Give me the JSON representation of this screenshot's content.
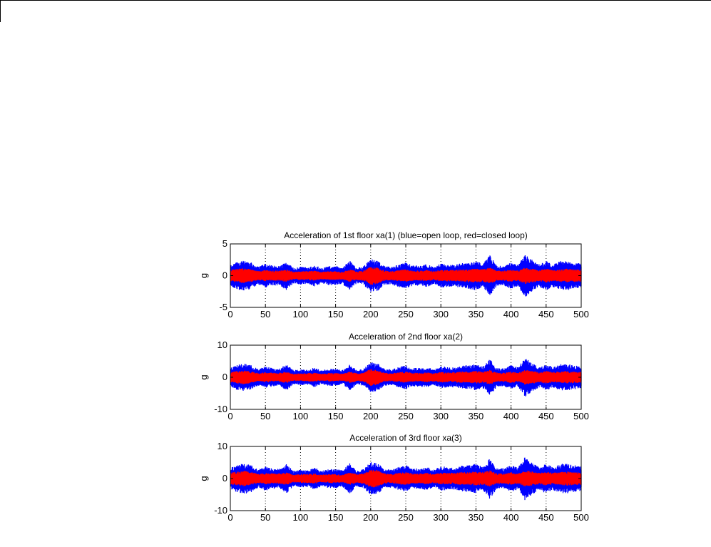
{
  "colors": {
    "open_loop": "#0000ff",
    "closed_loop": "#ff0000",
    "axis": "#000000",
    "grid": "#000000"
  },
  "chart_data": [
    {
      "type": "area",
      "title": "Acceleration of 1st floor xa(1) (blue=open loop, red=closed loop)",
      "xlabel": "",
      "ylabel": "g",
      "xlim": [
        0,
        500
      ],
      "ylim": [
        -5,
        5
      ],
      "xticks": [
        "0",
        "50",
        "100",
        "150",
        "200",
        "250",
        "300",
        "350",
        "400",
        "450",
        "500"
      ],
      "yticks": [
        "5",
        "0",
        "-5"
      ],
      "grid": "vertical dotted",
      "x": [
        0,
        10,
        20,
        30,
        40,
        50,
        60,
        70,
        80,
        90,
        100,
        110,
        120,
        130,
        140,
        150,
        160,
        170,
        180,
        190,
        200,
        210,
        220,
        230,
        240,
        250,
        260,
        270,
        280,
        290,
        300,
        310,
        320,
        330,
        340,
        350,
        360,
        370,
        380,
        390,
        400,
        410,
        420,
        430,
        440,
        450,
        460,
        470,
        480,
        490,
        500
      ],
      "series": [
        {
          "name": "blue=open loop",
          "color": "#0000ff",
          "envelope": [
            1.6,
            2.2,
            2.4,
            2.1,
            1.4,
            1.9,
            1.6,
            1.5,
            2.3,
            1.2,
            1.4,
            1.3,
            1.7,
            1.2,
            1.5,
            1.5,
            1.3,
            2.4,
            1.2,
            1.5,
            2.6,
            2.4,
            1.5,
            1.4,
            1.8,
            2.1,
            1.6,
            1.6,
            1.8,
            1.4,
            1.9,
            1.8,
            1.7,
            2.0,
            2.1,
            2.3,
            1.9,
            3.2,
            1.6,
            1.6,
            2.1,
            1.7,
            3.4,
            2.5,
            1.8,
            2.3,
            1.8,
            2.3,
            2.3,
            2.1,
            1.9
          ]
        },
        {
          "name": "red=closed loop",
          "color": "#ff0000",
          "envelope": [
            0.9,
            1.1,
            1.2,
            1.0,
            0.7,
            0.9,
            0.8,
            0.8,
            1.0,
            0.6,
            0.7,
            0.7,
            0.8,
            0.6,
            0.7,
            0.7,
            0.6,
            1.0,
            0.7,
            0.8,
            1.5,
            1.3,
            0.8,
            0.7,
            0.9,
            1.0,
            0.8,
            0.8,
            0.9,
            0.7,
            0.9,
            0.9,
            0.9,
            1.0,
            1.0,
            1.1,
            1.0,
            1.3,
            0.8,
            0.8,
            1.0,
            0.8,
            1.3,
            1.1,
            0.9,
            1.1,
            0.9,
            1.0,
            1.1,
            1.0,
            1.0
          ]
        }
      ]
    },
    {
      "type": "area",
      "title": "Acceleration of 2nd floor xa(2)",
      "xlabel": "",
      "ylabel": "g",
      "xlim": [
        0,
        500
      ],
      "ylim": [
        -10,
        10
      ],
      "xticks": [
        "0",
        "50",
        "100",
        "150",
        "200",
        "250",
        "300",
        "350",
        "400",
        "450",
        "500"
      ],
      "yticks": [
        "10",
        "0",
        "-10"
      ],
      "grid": "vertical dotted",
      "x": [
        0,
        10,
        20,
        30,
        40,
        50,
        60,
        70,
        80,
        90,
        100,
        110,
        120,
        130,
        140,
        150,
        160,
        170,
        180,
        190,
        200,
        210,
        220,
        230,
        240,
        250,
        260,
        270,
        280,
        290,
        300,
        310,
        320,
        330,
        340,
        350,
        360,
        370,
        380,
        390,
        400,
        410,
        420,
        430,
        440,
        450,
        460,
        470,
        480,
        490,
        500
      ],
      "series": [
        {
          "name": "blue=open loop",
          "color": "#0000ff",
          "envelope": [
            2.9,
            4.0,
            4.3,
            3.8,
            2.6,
            3.4,
            2.9,
            2.7,
            4.1,
            2.2,
            2.5,
            2.3,
            3.1,
            2.2,
            2.7,
            2.7,
            2.3,
            4.3,
            2.2,
            2.7,
            4.7,
            4.3,
            2.7,
            2.5,
            3.2,
            3.8,
            2.9,
            2.9,
            3.2,
            2.5,
            3.4,
            3.2,
            3.1,
            3.6,
            3.8,
            4.1,
            3.4,
            5.8,
            2.9,
            2.9,
            3.8,
            3.1,
            6.1,
            4.5,
            3.2,
            4.1,
            3.2,
            4.1,
            4.1,
            3.8,
            3.4
          ]
        },
        {
          "name": "red=closed loop",
          "color": "#ff0000",
          "envelope": [
            1.6,
            2.0,
            2.2,
            1.8,
            1.3,
            1.6,
            1.4,
            1.4,
            1.8,
            1.1,
            1.3,
            1.3,
            1.4,
            1.1,
            1.3,
            1.3,
            1.1,
            1.8,
            1.3,
            1.4,
            2.7,
            2.3,
            1.4,
            1.3,
            1.6,
            1.8,
            1.4,
            1.4,
            1.6,
            1.3,
            1.6,
            1.6,
            1.6,
            1.8,
            1.8,
            2.0,
            1.8,
            2.3,
            1.4,
            1.4,
            1.8,
            1.4,
            2.3,
            2.0,
            1.6,
            2.0,
            1.6,
            1.8,
            2.0,
            1.8,
            1.8
          ]
        }
      ]
    },
    {
      "type": "area",
      "title": "Acceleration of 3rd floor xa(3)",
      "xlabel": "",
      "ylabel": "g",
      "xlim": [
        0,
        500
      ],
      "ylim": [
        -10,
        10
      ],
      "xticks": [
        "0",
        "50",
        "100",
        "150",
        "200",
        "250",
        "300",
        "350",
        "400",
        "450",
        "500"
      ],
      "yticks": [
        "10",
        "0",
        "-10"
      ],
      "grid": "vertical dotted",
      "x": [
        0,
        10,
        20,
        30,
        40,
        50,
        60,
        70,
        80,
        90,
        100,
        110,
        120,
        130,
        140,
        150,
        160,
        170,
        180,
        190,
        200,
        210,
        220,
        230,
        240,
        250,
        260,
        270,
        280,
        290,
        300,
        310,
        320,
        330,
        340,
        350,
        360,
        370,
        380,
        390,
        400,
        410,
        420,
        430,
        440,
        450,
        460,
        470,
        480,
        490,
        500
      ],
      "series": [
        {
          "name": "blue=open loop",
          "color": "#0000ff",
          "envelope": [
            3.2,
            4.4,
            4.8,
            4.2,
            2.8,
            3.8,
            3.2,
            3.0,
            4.6,
            2.4,
            2.8,
            2.6,
            3.4,
            2.4,
            3.0,
            3.0,
            2.6,
            4.8,
            2.4,
            3.0,
            5.2,
            4.8,
            3.0,
            2.8,
            3.6,
            4.2,
            3.2,
            3.2,
            3.6,
            2.8,
            3.8,
            3.6,
            3.4,
            4.0,
            4.2,
            4.6,
            3.8,
            6.4,
            3.2,
            3.2,
            4.2,
            3.4,
            6.8,
            5.0,
            3.6,
            4.6,
            3.6,
            4.6,
            4.6,
            4.2,
            3.8
          ]
        },
        {
          "name": "red=closed loop",
          "color": "#ff0000",
          "envelope": [
            1.8,
            2.2,
            2.4,
            2.0,
            1.4,
            1.8,
            1.6,
            1.6,
            2.0,
            1.2,
            1.4,
            1.4,
            1.6,
            1.2,
            1.4,
            1.4,
            1.2,
            2.0,
            1.4,
            1.6,
            3.0,
            2.6,
            1.6,
            1.4,
            1.8,
            2.0,
            1.6,
            1.6,
            1.8,
            1.4,
            1.8,
            1.8,
            1.8,
            2.0,
            2.0,
            2.2,
            2.0,
            2.6,
            1.6,
            1.6,
            2.0,
            1.6,
            2.6,
            2.2,
            1.8,
            2.2,
            1.8,
            2.0,
            2.2,
            2.0,
            2.0
          ]
        }
      ]
    }
  ]
}
